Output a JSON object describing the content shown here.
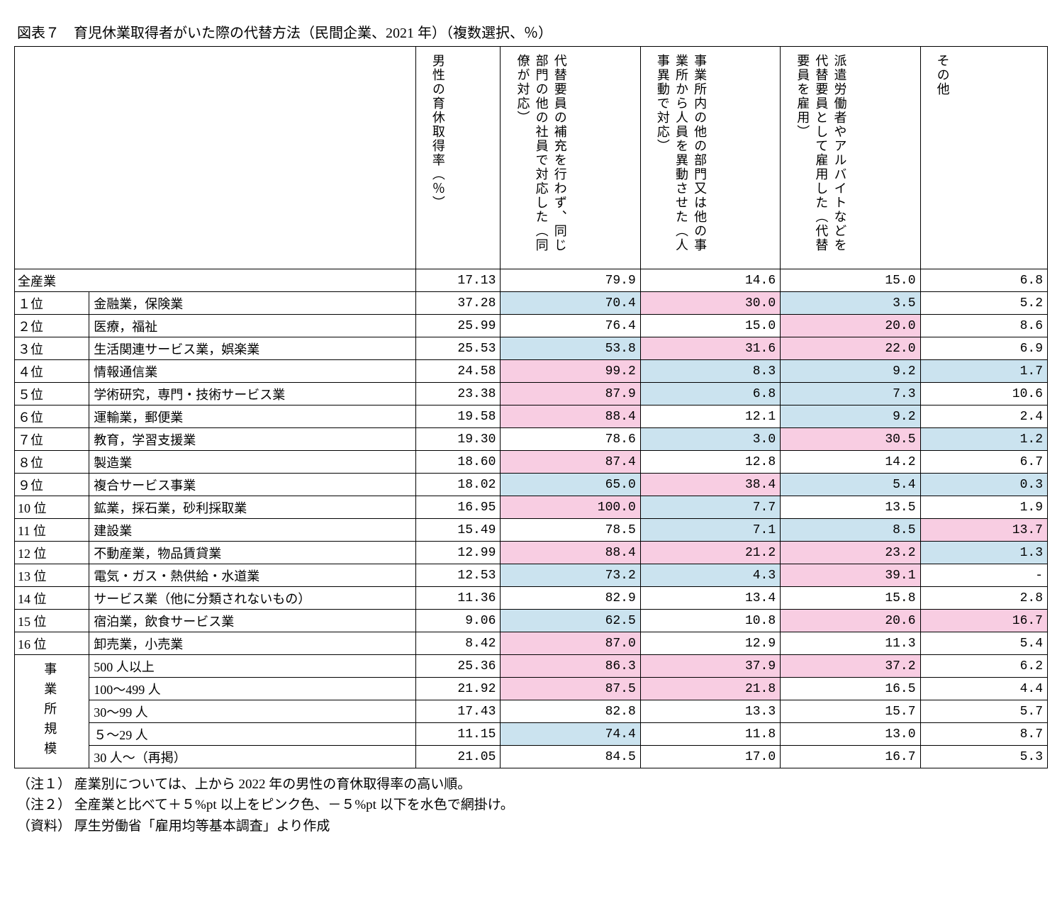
{
  "title": "図表７　育児休業取得者がいた際の代替方法（民間企業、2021 年）（複数選択、％）",
  "headers": {
    "rate": "男性の育休取得率（％）",
    "c1": "代替要員の補充を行わず、同じ部門の他の社員で対応した（同僚が対応）",
    "c2": "事業所内の他の部門又は他の事業所から人員を異動させた（人事異動で対応）",
    "c3": "派遣労働者やアルバイトなどを代替要員として雇用した（代替要員を雇用）",
    "c4": "その他"
  },
  "all_label": "全産業",
  "all": {
    "rate": "17.13",
    "v1": "79.9",
    "v2": "14.6",
    "v3": "15.0",
    "v4": "6.8"
  },
  "rows": [
    {
      "rank": "１位",
      "name": "金融業，保険業",
      "rate": "37.28",
      "v1": "70.4",
      "v2": "30.0",
      "v3": "3.5",
      "v4": "5.2",
      "h1": "blue",
      "h2": "pink",
      "h3": "blue",
      "h4": ""
    },
    {
      "rank": "２位",
      "name": "医療，福祉",
      "rate": "25.99",
      "v1": "76.4",
      "v2": "15.0",
      "v3": "20.0",
      "v4": "8.6",
      "h1": "",
      "h2": "",
      "h3": "pink",
      "h4": ""
    },
    {
      "rank": "３位",
      "name": "生活関連サービス業，娯楽業",
      "rate": "25.53",
      "v1": "53.8",
      "v2": "31.6",
      "v3": "22.0",
      "v4": "6.9",
      "h1": "blue",
      "h2": "pink",
      "h3": "pink",
      "h4": ""
    },
    {
      "rank": "４位",
      "name": "情報通信業",
      "rate": "24.58",
      "v1": "99.2",
      "v2": "8.3",
      "v3": "9.2",
      "v4": "1.7",
      "h1": "pink",
      "h2": "blue",
      "h3": "blue",
      "h4": "blue"
    },
    {
      "rank": "５位",
      "name": "学術研究，専門・技術サービス業",
      "rate": "23.38",
      "v1": "87.9",
      "v2": "6.8",
      "v3": "7.3",
      "v4": "10.6",
      "h1": "pink",
      "h2": "blue",
      "h3": "blue",
      "h4": ""
    },
    {
      "rank": "６位",
      "name": "運輸業，郵便業",
      "rate": "19.58",
      "v1": "88.4",
      "v2": "12.1",
      "v3": "9.2",
      "v4": "2.4",
      "h1": "pink",
      "h2": "",
      "h3": "blue",
      "h4": ""
    },
    {
      "rank": "７位",
      "name": "教育，学習支援業",
      "rate": "19.30",
      "v1": "78.6",
      "v2": "3.0",
      "v3": "30.5",
      "v4": "1.2",
      "h1": "",
      "h2": "blue",
      "h3": "pink",
      "h4": "blue"
    },
    {
      "rank": "８位",
      "name": "製造業",
      "rate": "18.60",
      "v1": "87.4",
      "v2": "12.8",
      "v3": "14.2",
      "v4": "6.7",
      "h1": "pink",
      "h2": "",
      "h3": "",
      "h4": ""
    },
    {
      "rank": "９位",
      "name": "複合サービス事業",
      "rate": "18.02",
      "v1": "65.0",
      "v2": "38.4",
      "v3": "5.4",
      "v4": "0.3",
      "h1": "blue",
      "h2": "pink",
      "h3": "blue",
      "h4": "blue"
    },
    {
      "rank": "10 位",
      "name": "鉱業，採石業，砂利採取業",
      "rate": "16.95",
      "v1": "100.0",
      "v2": "7.7",
      "v3": "13.5",
      "v4": "1.9",
      "h1": "pink",
      "h2": "blue",
      "h3": "",
      "h4": ""
    },
    {
      "rank": "11 位",
      "name": "建設業",
      "rate": "15.49",
      "v1": "78.5",
      "v2": "7.1",
      "v3": "8.5",
      "v4": "13.7",
      "h1": "",
      "h2": "blue",
      "h3": "blue",
      "h4": "pink"
    },
    {
      "rank": "12 位",
      "name": "不動産業，物品賃貸業",
      "rate": "12.99",
      "v1": "88.4",
      "v2": "21.2",
      "v3": "23.2",
      "v4": "1.3",
      "h1": "pink",
      "h2": "pink",
      "h3": "pink",
      "h4": "blue"
    },
    {
      "rank": "13 位",
      "name": "電気・ガス・熱供給・水道業",
      "rate": "12.53",
      "v1": "73.2",
      "v2": "4.3",
      "v3": "39.1",
      "v4": "-",
      "h1": "blue",
      "h2": "blue",
      "h3": "pink",
      "h4": ""
    },
    {
      "rank": "14 位",
      "name": "サービス業（他に分類されないもの）",
      "rate": "11.36",
      "v1": "82.9",
      "v2": "13.4",
      "v3": "15.8",
      "v4": "2.8",
      "h1": "",
      "h2": "",
      "h3": "",
      "h4": ""
    },
    {
      "rank": "15 位",
      "name": "宿泊業，飲食サービス業",
      "rate": "9.06",
      "v1": "62.5",
      "v2": "10.8",
      "v3": "20.6",
      "v4": "16.7",
      "h1": "blue",
      "h2": "",
      "h3": "pink",
      "h4": "pink"
    },
    {
      "rank": "16 位",
      "name": "卸売業，小売業",
      "rate": "8.42",
      "v1": "87.0",
      "v2": "12.9",
      "v3": "11.3",
      "v4": "5.4",
      "h1": "pink",
      "h2": "",
      "h3": "",
      "h4": ""
    }
  ],
  "size_label": "事業所規模",
  "sizes": [
    {
      "name": "500 人以上",
      "rate": "25.36",
      "v1": "86.3",
      "v2": "37.9",
      "v3": "37.2",
      "v4": "6.2",
      "h1": "pink",
      "h2": "pink",
      "h3": "pink",
      "h4": ""
    },
    {
      "name": "100～499 人",
      "rate": "21.92",
      "v1": "87.5",
      "v2": "21.8",
      "v3": "16.5",
      "v4": "4.4",
      "h1": "pink",
      "h2": "pink",
      "h3": "",
      "h4": ""
    },
    {
      "name": "30～99 人",
      "rate": "17.43",
      "v1": "82.8",
      "v2": "13.3",
      "v3": "15.7",
      "v4": "5.7",
      "h1": "",
      "h2": "",
      "h3": "",
      "h4": ""
    },
    {
      "name": "５～29 人",
      "rate": "11.15",
      "v1": "74.4",
      "v2": "11.8",
      "v3": "13.0",
      "v4": "8.7",
      "h1": "blue",
      "h2": "",
      "h3": "",
      "h4": ""
    },
    {
      "name": "30 人～（再掲）",
      "rate": "21.05",
      "v1": "84.5",
      "v2": "17.0",
      "v3": "16.7",
      "v4": "5.3",
      "h1": "",
      "h2": "",
      "h3": "",
      "h4": ""
    }
  ],
  "notes": {
    "n1": "（注１） 産業別については、上から 2022 年の男性の育休取得率の高い順。",
    "n2": "（注２） 全産業と比べて＋５%pt 以上をピンク色、－５%pt 以下を水色で網掛け。",
    "n3": "（資料） 厚生労働省「雇用均等基本調査」より作成"
  },
  "colors": {
    "pink": "#f8cde2",
    "blue": "#cbe3ef"
  }
}
